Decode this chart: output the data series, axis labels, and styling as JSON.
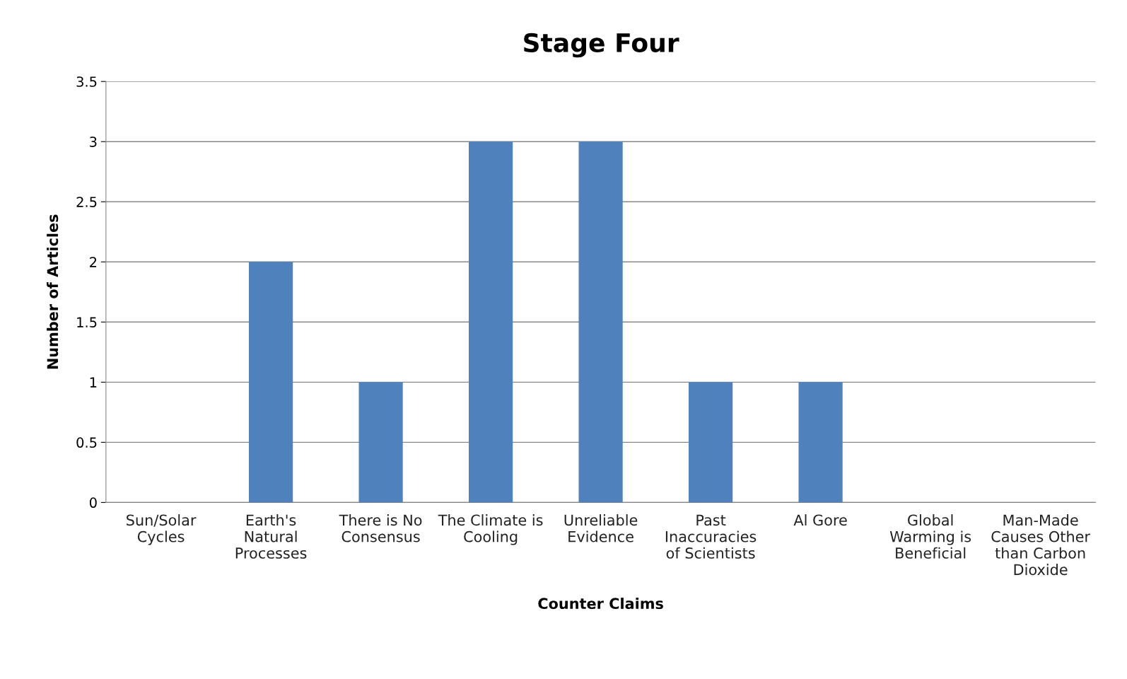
{
  "chart_data": {
    "type": "bar",
    "title": "Stage Four",
    "xlabel": "Counter Claims",
    "ylabel": "Number of Articles",
    "categories": [
      "Sun/Solar\nCycles",
      "Earth's\nNatural\nProcesses",
      "There is No\nConsensus",
      "The Climate is\nCooling",
      "Unreliable\nEvidence",
      "Past\nInaccuracies\nof Scientists",
      "Al Gore",
      "Global\nWarming is\nBeneficial",
      "Man-Made\nCauses Other\nthan Carbon\nDioxide"
    ],
    "values": [
      0,
      2,
      1,
      3,
      3,
      1,
      1,
      0,
      0
    ],
    "color": "#4f81bd",
    "ylim": [
      0,
      3.5
    ],
    "yticks": [
      0,
      0.5,
      1,
      1.5,
      2,
      2.5,
      3,
      3.5
    ],
    "grid": "y",
    "legend": false
  }
}
